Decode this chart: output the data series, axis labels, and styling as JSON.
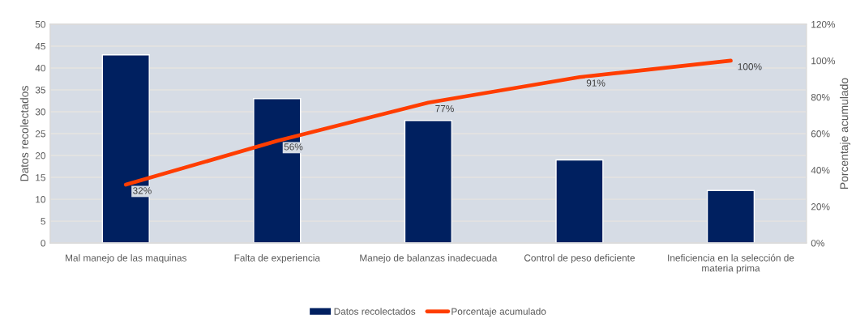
{
  "chart_data": {
    "type": "bar",
    "categories": [
      "Mal manejo de las maquinas",
      "Falta de experiencia",
      "Manejo de balanzas inadecuada",
      "Control de peso deficiente",
      "Ineficiencia en la selección de materia prima"
    ],
    "series": [
      {
        "name": "Datos recolectados",
        "color": "#002060",
        "values": [
          43,
          33,
          28,
          19,
          12
        ]
      },
      {
        "name": "Porcentaje acumulado",
        "type": "line",
        "axis": "y2",
        "color": "#ff3d00",
        "values": [
          32,
          56,
          77,
          91,
          100
        ],
        "value_labels": [
          "32%",
          "56%",
          "77%",
          "91%",
          "100%"
        ]
      }
    ],
    "ylabel": "Datos recolectados",
    "y2label": "Porcentaje acumulado",
    "ylim": [
      0,
      50
    ],
    "yticks": [
      0,
      5,
      10,
      15,
      20,
      25,
      30,
      35,
      40,
      45,
      50
    ],
    "y2lim": [
      0,
      120
    ],
    "y2ticks": [
      {
        "value": 0,
        "label": "0%"
      },
      {
        "value": 20,
        "label": "20%"
      },
      {
        "value": 40,
        "label": "40%"
      },
      {
        "value": 60,
        "label": "60%"
      },
      {
        "value": 80,
        "label": "80%"
      },
      {
        "value": 100,
        "label": "100%"
      },
      {
        "value": 120,
        "label": "120%"
      }
    ],
    "grid": "y",
    "legend": "bottom"
  }
}
